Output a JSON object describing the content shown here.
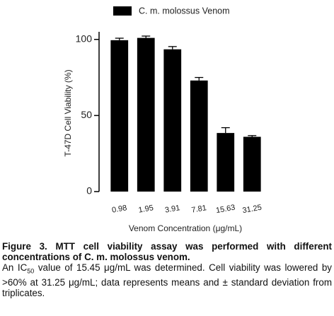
{
  "chart_data": {
    "type": "bar",
    "y_label": "T-47D Cell Viability (%)",
    "x_label": "Venom Concentration (μg/mL)",
    "categories": [
      "0.98",
      "1.95",
      "3.91",
      "7.81",
      "15.63",
      "31.25"
    ],
    "series": [
      {
        "name": "C. m. molossus Venom",
        "color": "#000000",
        "values": [
          99.5,
          101,
          93.5,
          73,
          38.5,
          36
        ],
        "errors": [
          1.3,
          1.2,
          1.8,
          2,
          3.5,
          0.8
        ]
      }
    ],
    "ylim": [
      0,
      105
    ],
    "yticks": [
      0,
      50,
      100
    ],
    "grid": false
  },
  "caption": {
    "title": "Figure 3. MTT cell viability assay was performed with different concentrations of C. m. molossus venom.",
    "body_start": "An IC",
    "body_sub": "50",
    "body_end": " value of 15.45 μg/mL was determined. Cell viability was lowered by >60% at 31.25 μg/mL; data represents means and ± standard deviation from triplicates."
  }
}
